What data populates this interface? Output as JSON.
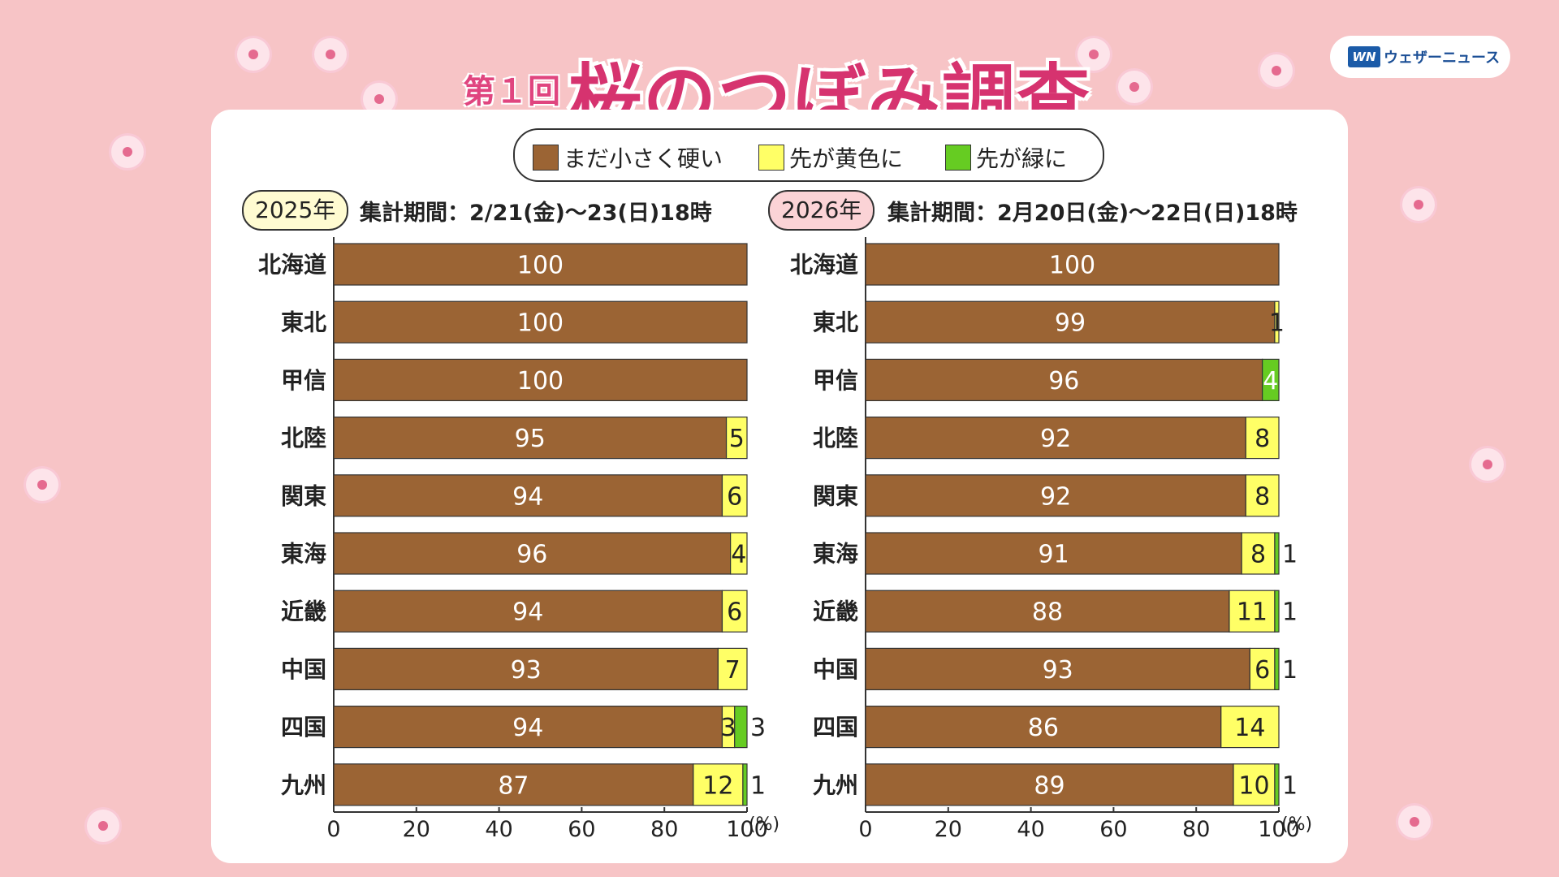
{
  "title": {
    "kai": "第１回",
    "main": "桜のつぼみ調査"
  },
  "brand": {
    "logo": "WN",
    "name": "ウェザーニュース"
  },
  "legend": [
    {
      "label": "まだ小さく硬い",
      "color": "#9b6434"
    },
    {
      "label": "先が黄色に",
      "color": "#ffff66"
    },
    {
      "label": "先が緑に",
      "color": "#66cc22"
    }
  ],
  "panels": [
    {
      "year": "2025年",
      "period": "集計期間：2/21(金)〜23(日)18時",
      "badge_color": "#fffbd1"
    },
    {
      "year": "2026年",
      "period": "集計期間：2月20日(金)〜22日(日)18時",
      "badge_color": "#fbd3d6"
    }
  ],
  "axis_unit": "(%)",
  "chart_data": [
    {
      "type": "bar",
      "stacked": true,
      "orientation": "horizontal",
      "categories": [
        "北海道",
        "東北",
        "甲信",
        "北陸",
        "関東",
        "東海",
        "近畿",
        "中国",
        "四国",
        "九州"
      ],
      "series": [
        {
          "name": "まだ小さく硬い",
          "color": "#9b6434",
          "values": [
            100,
            100,
            100,
            95,
            94,
            96,
            94,
            93,
            94,
            87
          ]
        },
        {
          "name": "先が黄色に",
          "color": "#ffff66",
          "values": [
            0,
            0,
            0,
            5,
            6,
            4,
            6,
            7,
            3,
            12
          ]
        },
        {
          "name": "先が緑に",
          "color": "#66cc22",
          "values": [
            0,
            0,
            0,
            0,
            0,
            0,
            0,
            0,
            3,
            1
          ]
        }
      ],
      "xlim": [
        0,
        100
      ],
      "xticks": [
        0,
        20,
        40,
        60,
        80,
        100
      ]
    },
    {
      "type": "bar",
      "stacked": true,
      "orientation": "horizontal",
      "categories": [
        "北海道",
        "東北",
        "甲信",
        "北陸",
        "関東",
        "東海",
        "近畿",
        "中国",
        "四国",
        "九州"
      ],
      "series": [
        {
          "name": "まだ小さく硬い",
          "color": "#9b6434",
          "values": [
            100,
            99,
            96,
            92,
            92,
            91,
            88,
            93,
            86,
            89
          ]
        },
        {
          "name": "先が黄色に",
          "color": "#ffff66",
          "values": [
            0,
            1,
            0,
            8,
            8,
            8,
            11,
            6,
            14,
            10
          ]
        },
        {
          "name": "先が緑に",
          "color": "#66cc22",
          "values": [
            0,
            0,
            4,
            0,
            0,
            1,
            1,
            1,
            0,
            1
          ]
        }
      ],
      "xlim": [
        0,
        100
      ],
      "xticks": [
        0,
        20,
        40,
        60,
        80,
        100
      ]
    }
  ]
}
